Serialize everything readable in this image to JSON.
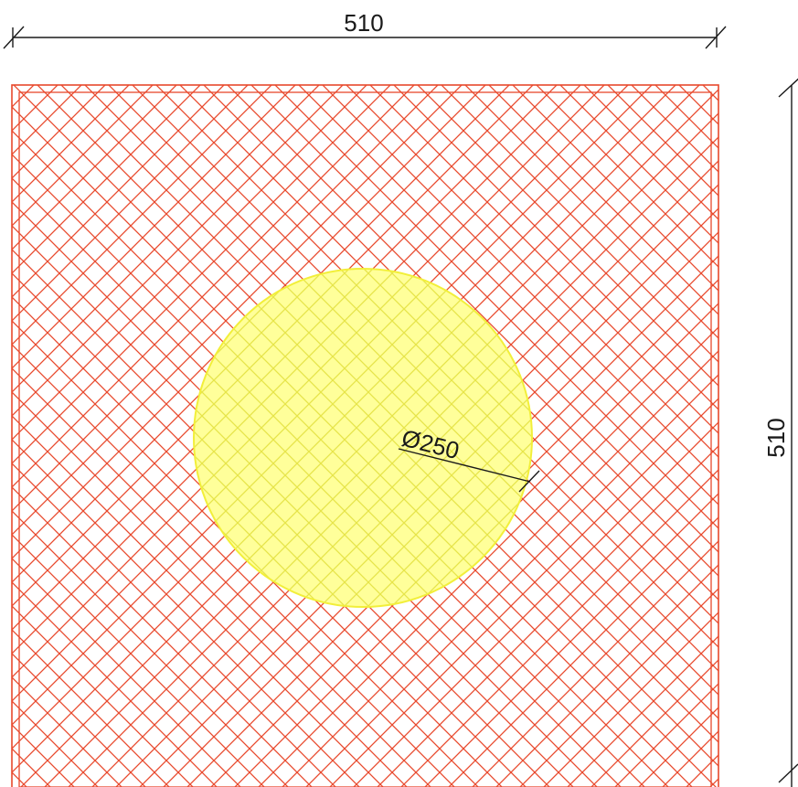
{
  "drawing": {
    "plate": {
      "width_label": "510",
      "height_label": "510",
      "hatch_color": "#e8492c",
      "outline_color": "#e8492c"
    },
    "hole": {
      "diameter_label": "Ø250",
      "fill_color": "#ffff9a",
      "hatch_color": "#e6e44a",
      "outline_color": "#f2ef3a"
    },
    "dimension_color": "#1a1a1a"
  }
}
